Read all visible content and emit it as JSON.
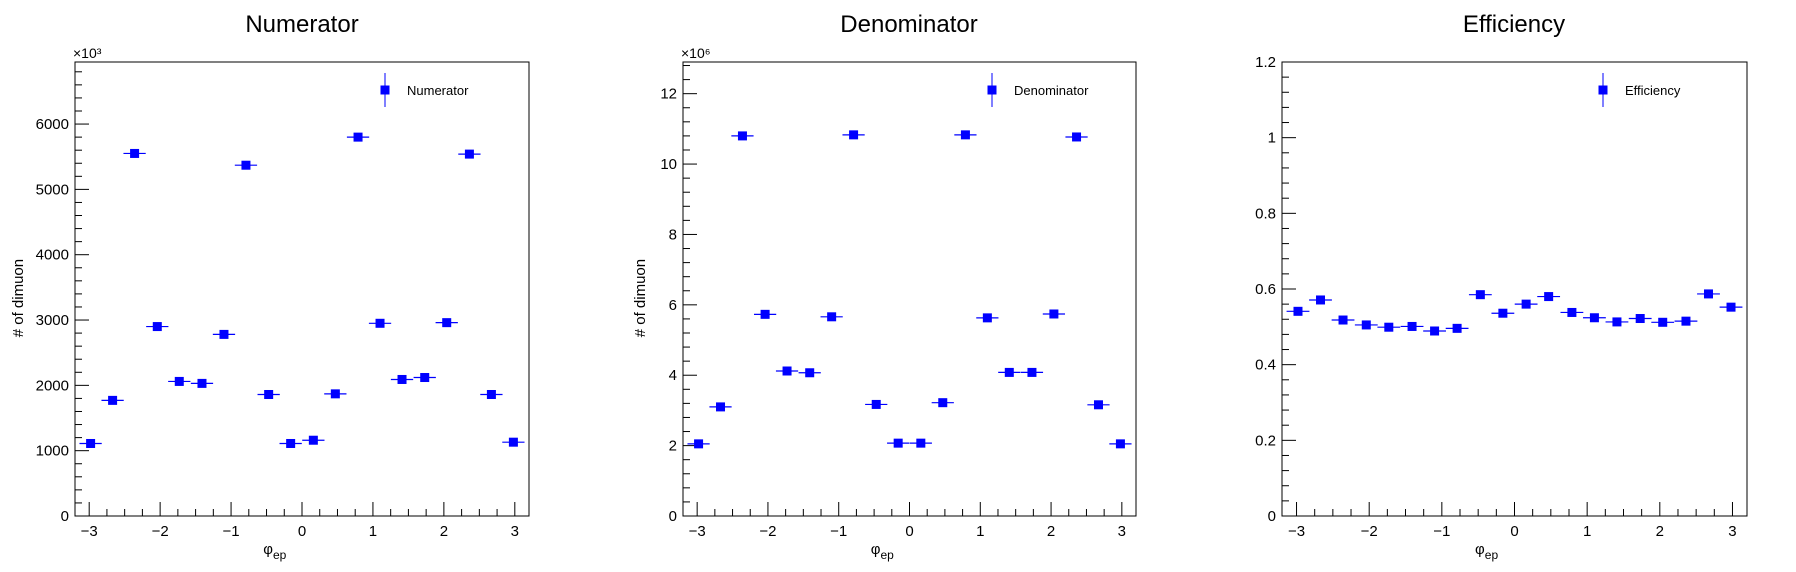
{
  "chart_data": [
    {
      "type": "scatter",
      "title": "Numerator",
      "xlabel": "φ_ep",
      "ylabel": "# of dimuon",
      "y_multiplier_label": "×10³",
      "xlim": [
        -3.2,
        3.2
      ],
      "ylim": [
        0,
        6.95
      ],
      "x_ticks": [
        -3,
        -2,
        -1,
        0,
        1,
        2,
        3
      ],
      "y_ticks": [
        0,
        1000,
        2000,
        3000,
        4000,
        5000,
        6000
      ],
      "y_tick_values": [
        0,
        1,
        2,
        3,
        4,
        5,
        6
      ],
      "grid": false,
      "legend_position": "top-right",
      "series": [
        {
          "name": "Numerator",
          "color": "#0000ff",
          "x_bin_half_width": 0.157,
          "x": [
            -2.98,
            -2.67,
            -2.36,
            -2.04,
            -1.73,
            -1.41,
            -1.1,
            -0.79,
            -0.47,
            -0.16,
            0.16,
            0.47,
            0.79,
            1.1,
            1.41,
            1.73,
            2.04,
            2.36,
            2.67,
            2.98
          ],
          "y": [
            1.11,
            1.77,
            5.55,
            2.9,
            2.06,
            2.03,
            2.78,
            5.37,
            1.86,
            1.11,
            1.16,
            1.87,
            5.8,
            2.95,
            2.09,
            2.12,
            2.96,
            5.54,
            1.86,
            1.13
          ]
        }
      ]
    },
    {
      "type": "scatter",
      "title": "Denominator",
      "xlabel": "φ_ep",
      "ylabel": "# of dimuon",
      "y_multiplier_label": "×10⁶",
      "xlim": [
        -3.2,
        3.2
      ],
      "ylim": [
        0,
        12.9
      ],
      "x_ticks": [
        -3,
        -2,
        -1,
        0,
        1,
        2,
        3
      ],
      "y_ticks": [
        0,
        2,
        4,
        6,
        8,
        10,
        12
      ],
      "y_tick_values": [
        0,
        2,
        4,
        6,
        8,
        10,
        12
      ],
      "grid": false,
      "legend_position": "top-right",
      "series": [
        {
          "name": "Denominator",
          "color": "#0000ff",
          "x_bin_half_width": 0.157,
          "x": [
            -2.98,
            -2.67,
            -2.36,
            -2.04,
            -1.73,
            -1.41,
            -1.1,
            -0.79,
            -0.47,
            -0.16,
            0.16,
            0.47,
            0.79,
            1.1,
            1.41,
            1.73,
            2.04,
            2.36,
            2.67,
            2.98
          ],
          "y": [
            2.05,
            3.1,
            10.8,
            5.73,
            4.12,
            4.07,
            5.66,
            10.83,
            3.17,
            2.07,
            2.07,
            3.22,
            10.83,
            5.63,
            4.08,
            4.08,
            5.74,
            10.77,
            3.16,
            2.05
          ]
        }
      ]
    },
    {
      "type": "scatter",
      "title": "Efficiency",
      "xlabel": "φ_ep",
      "ylabel": "",
      "y_multiplier_label": "",
      "xlim": [
        -3.2,
        3.2
      ],
      "ylim": [
        0,
        1.2
      ],
      "x_ticks": [
        -3,
        -2,
        -1,
        0,
        1,
        2,
        3
      ],
      "y_ticks": [
        0,
        0.2,
        0.4,
        0.6,
        0.8,
        1,
        1.2
      ],
      "y_tick_values": [
        0,
        0.2,
        0.4,
        0.6,
        0.8,
        1,
        1.2
      ],
      "grid": false,
      "legend_position": "top-right",
      "series": [
        {
          "name": "Efficiency",
          "color": "#0000ff",
          "x_bin_half_width": 0.157,
          "x": [
            -2.98,
            -2.67,
            -2.36,
            -2.04,
            -1.73,
            -1.41,
            -1.1,
            -0.79,
            -0.47,
            -0.16,
            0.16,
            0.47,
            0.79,
            1.1,
            1.41,
            1.73,
            2.04,
            2.36,
            2.67,
            2.98
          ],
          "y": [
            0.541,
            0.571,
            0.518,
            0.505,
            0.499,
            0.501,
            0.489,
            0.496,
            0.585,
            0.536,
            0.56,
            0.58,
            0.538,
            0.524,
            0.513,
            0.522,
            0.512,
            0.515,
            0.587,
            0.552
          ]
        }
      ]
    }
  ]
}
